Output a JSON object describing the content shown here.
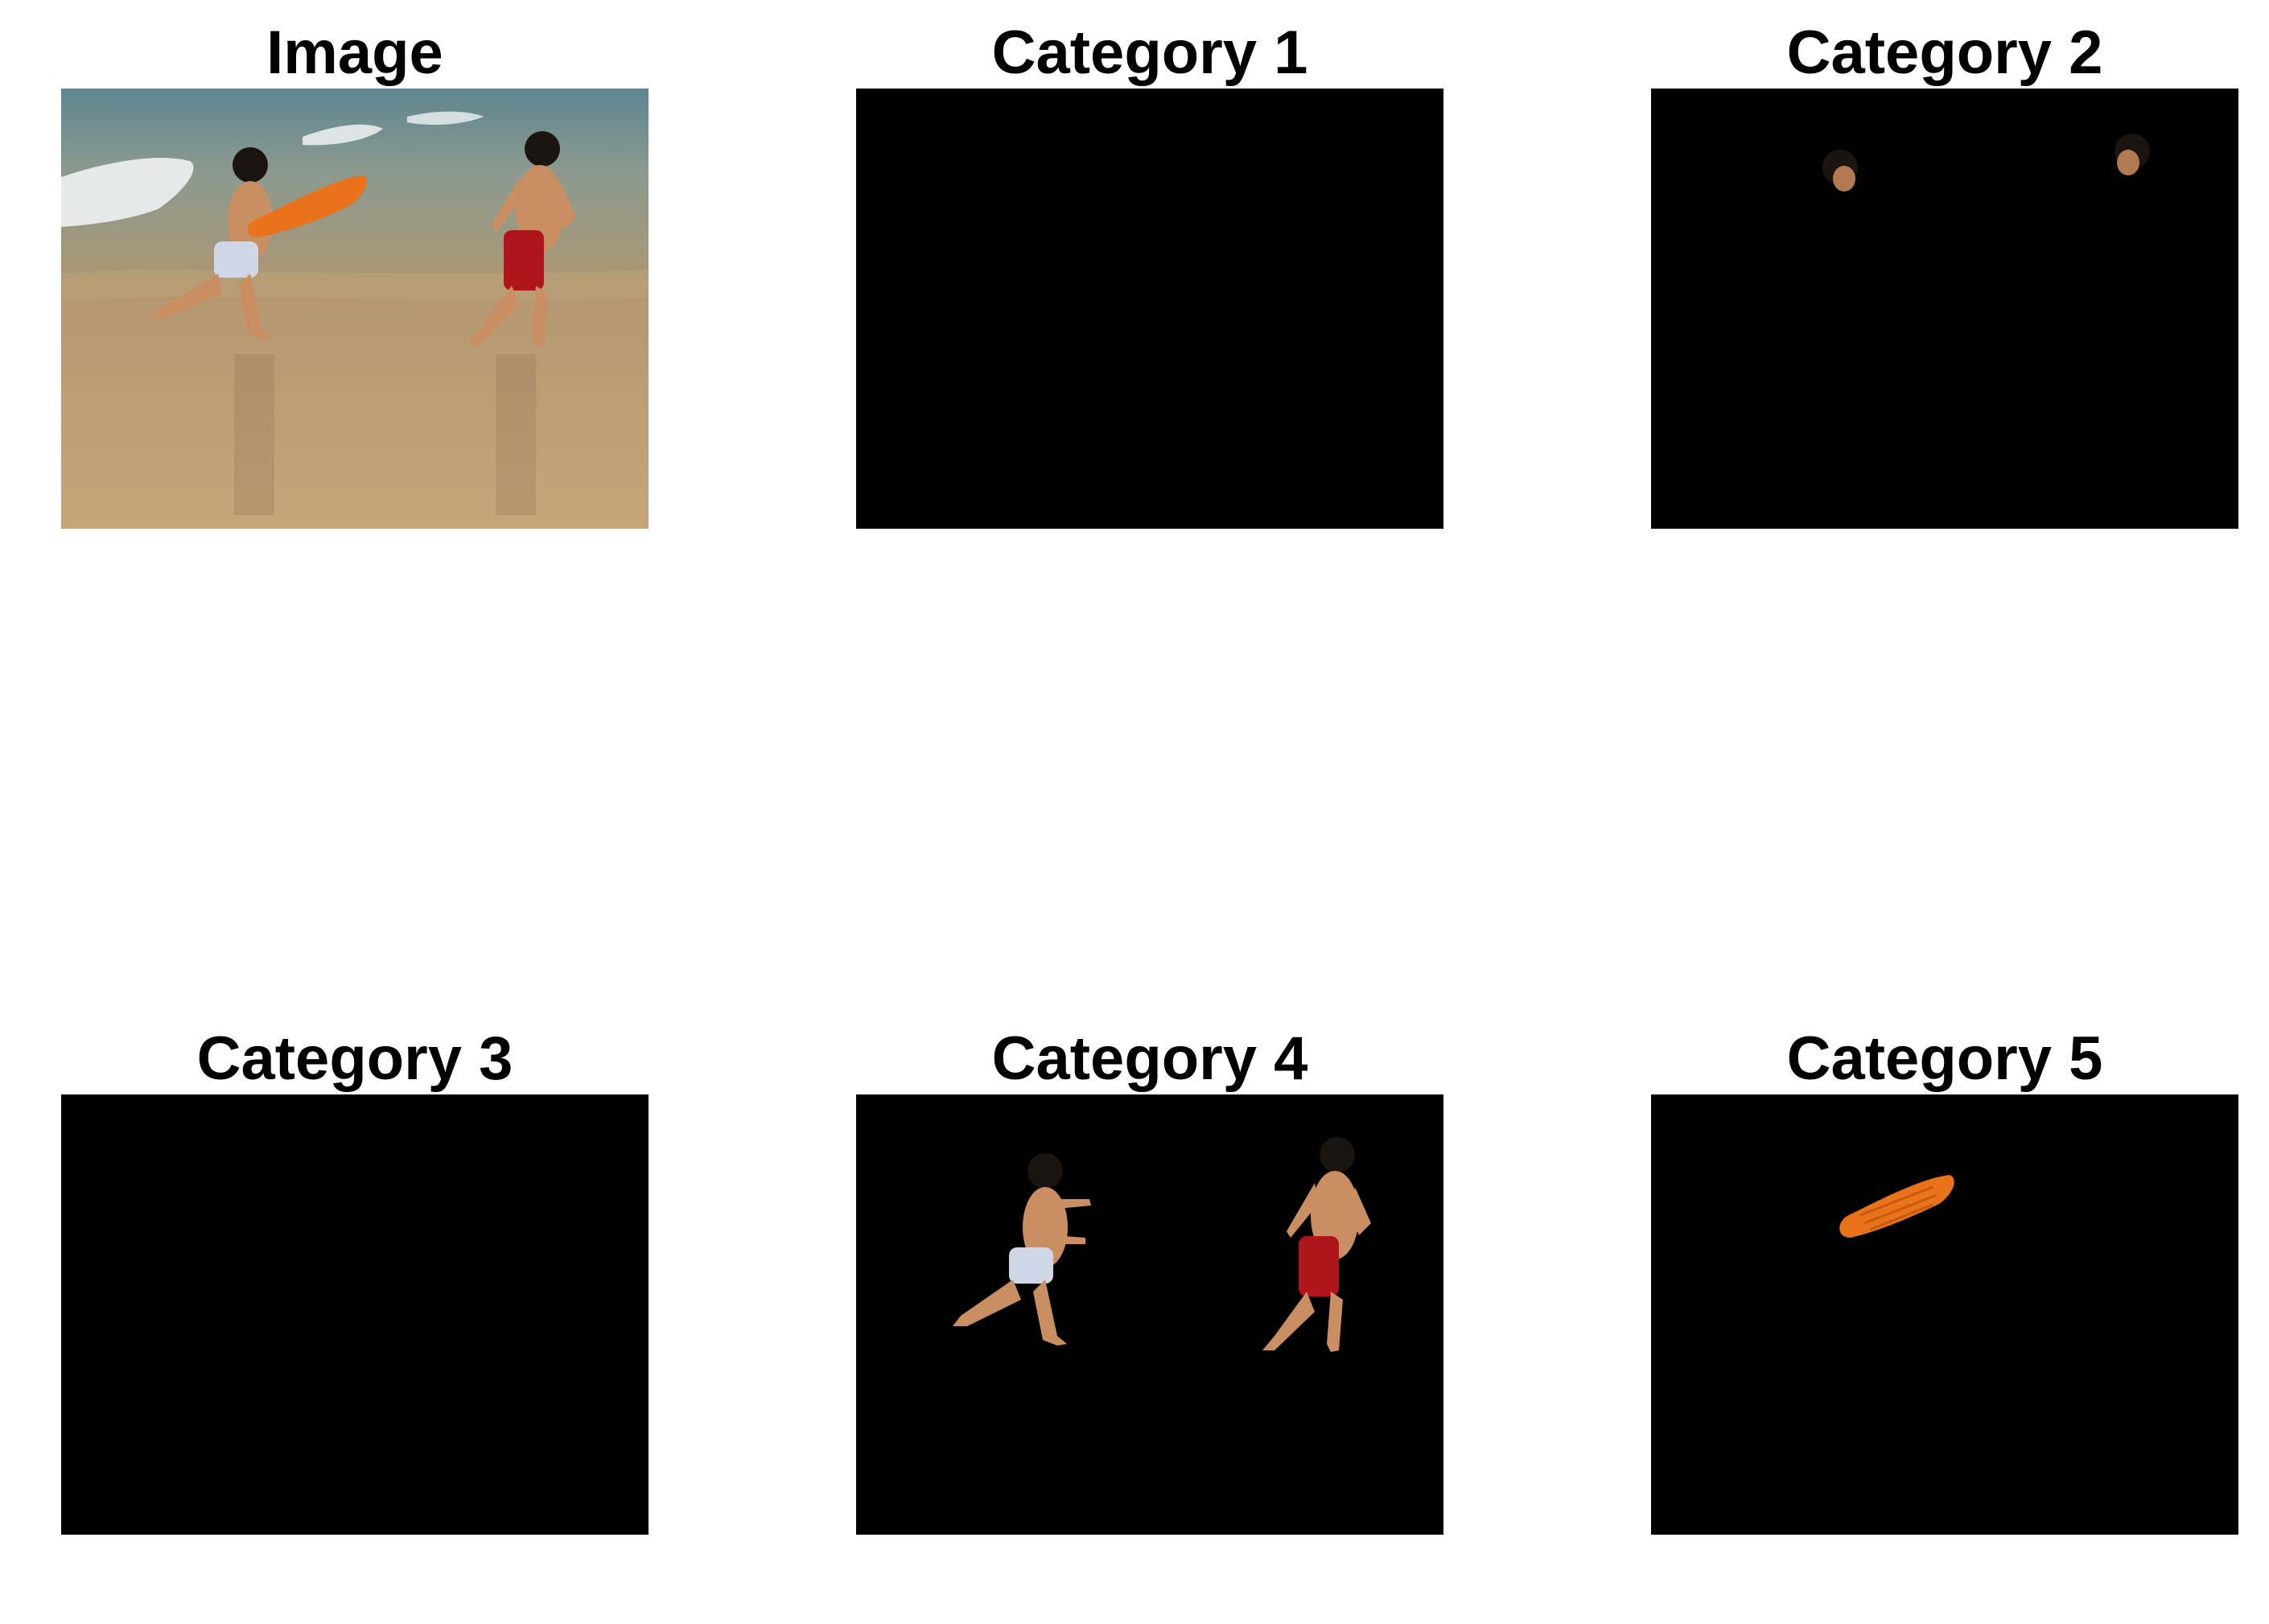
{
  "panels": [
    {
      "title": "Image"
    },
    {
      "title": "Category 1"
    },
    {
      "title": "Category 2"
    },
    {
      "title": "Category 3"
    },
    {
      "title": "Category 4"
    },
    {
      "title": "Category 5"
    }
  ],
  "colors": {
    "background": "#ffffff",
    "mask_background": "#000000",
    "surfboard_orange": "#e8731a",
    "red_shorts": "#b0141c",
    "skin": "#c98f63",
    "sand": "#b7986e",
    "sea": "#6e8d96"
  }
}
